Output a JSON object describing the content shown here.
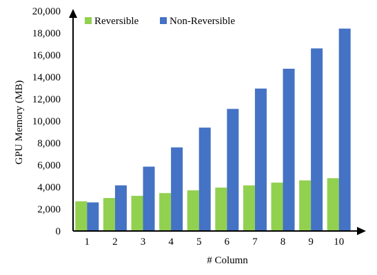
{
  "chart_data": {
    "type": "bar",
    "xlabel": "# Column",
    "ylabel": "GPU Memory (MB)",
    "categories": [
      "1",
      "2",
      "3",
      "4",
      "5",
      "6",
      "7",
      "8",
      "9",
      "10"
    ],
    "series": [
      {
        "name": "Reversible",
        "color": "#92d050",
        "values": [
          2700,
          3000,
          3200,
          3450,
          3700,
          3950,
          4150,
          4400,
          4600,
          4800
        ]
      },
      {
        "name": "Non-Reversible",
        "color": "#4472c4",
        "values": [
          2600,
          4150,
          5850,
          7600,
          9400,
          11100,
          12950,
          14750,
          16600,
          18400
        ]
      }
    ],
    "yticks": [
      "0",
      "2,000",
      "4,000",
      "6,000",
      "8,000",
      "10,000",
      "12,000",
      "14,000",
      "16,000",
      "18,000",
      "20,000"
    ],
    "ylim": [
      0,
      20000
    ],
    "grid": false,
    "legend_position": "top-left"
  }
}
